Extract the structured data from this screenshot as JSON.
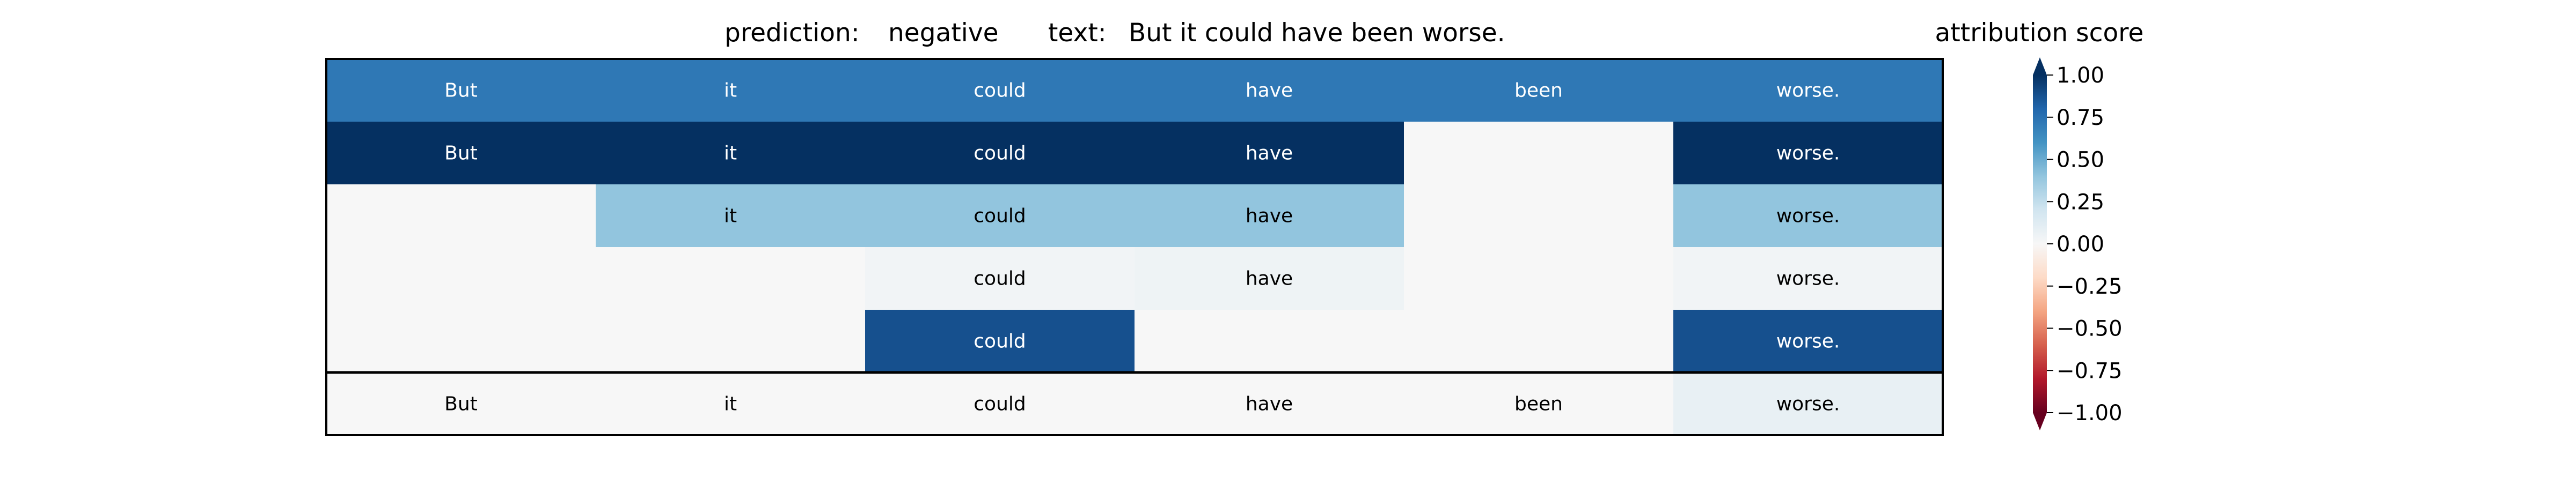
{
  "chart_data": {
    "type": "heatmap",
    "title": {
      "prediction_label": "prediction:",
      "prediction_value": "negative",
      "text_label": "text:",
      "text_value": "But it could have been worse."
    },
    "tokens": [
      "But",
      "it",
      "could",
      "have",
      "been",
      "worse."
    ],
    "rows": [
      {
        "values": [
          0.72,
          0.72,
          0.72,
          0.72,
          0.72,
          0.72
        ],
        "show": [
          true,
          true,
          true,
          true,
          true,
          true
        ]
      },
      {
        "values": [
          1.0,
          1.0,
          1.0,
          1.0,
          0.0,
          1.0
        ],
        "show": [
          true,
          true,
          true,
          true,
          false,
          true
        ]
      },
      {
        "values": [
          0.0,
          0.4,
          0.4,
          0.4,
          0.0,
          0.4
        ],
        "show": [
          false,
          true,
          true,
          true,
          false,
          true
        ]
      },
      {
        "values": [
          0.0,
          0.0,
          0.03,
          0.05,
          0.0,
          0.03
        ],
        "show": [
          false,
          false,
          true,
          true,
          false,
          true
        ]
      },
      {
        "values": [
          0.0,
          0.0,
          0.88,
          0.0,
          0.0,
          0.88
        ],
        "show": [
          false,
          false,
          true,
          false,
          false,
          true
        ]
      }
    ],
    "summary_row": {
      "values": [
        0.0,
        0.0,
        0.0,
        0.0,
        0.0,
        0.08
      ],
      "show": [
        true,
        true,
        true,
        true,
        true,
        true
      ]
    },
    "colorbar": {
      "label": "attribution score",
      "vmin": -1.0,
      "vmax": 1.0,
      "ticks": [
        1.0,
        0.75,
        0.5,
        0.25,
        0.0,
        -0.25,
        -0.5,
        -0.75,
        -1.0
      ],
      "tick_labels": [
        "1.00",
        "0.75",
        "0.50",
        "0.25",
        "0.00",
        "−0.25",
        "−0.50",
        "−0.75",
        "−1.00"
      ],
      "colormap": "RdBu",
      "extend": "both"
    }
  }
}
